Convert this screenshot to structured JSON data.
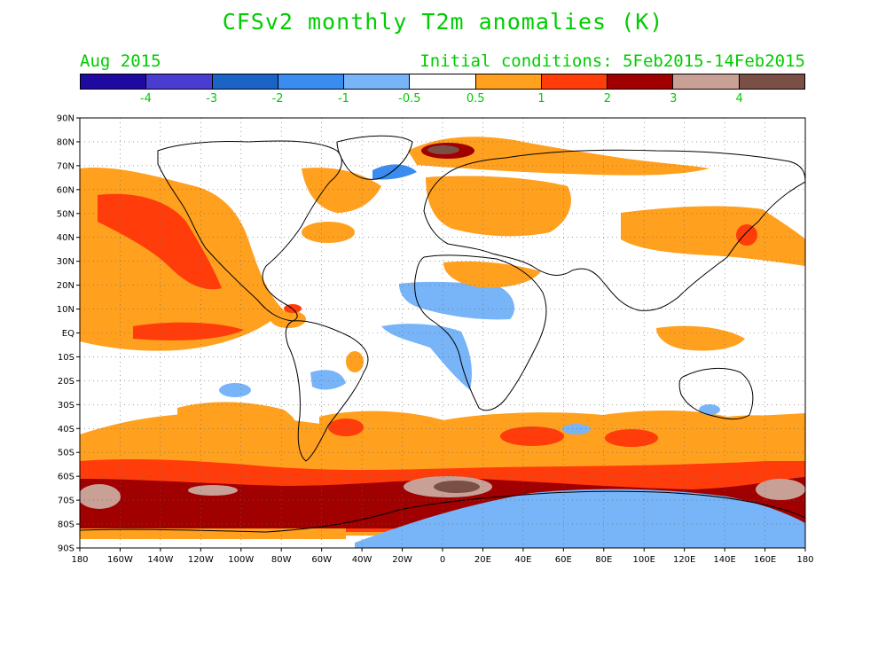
{
  "title": "CFSv2 monthly T2m anomalies (K)",
  "valid_month": "Aug 2015",
  "initial_conditions": "Initial conditions: 5Feb2015-14Feb2015",
  "colorbar": {
    "colors": [
      "#1e0aa0",
      "#4a3cd0",
      "#1a64c8",
      "#3a8cf0",
      "#78b4f8",
      "#ffffff",
      "#ffa01e",
      "#ff3c0a",
      "#a00000",
      "#c8a096",
      "#7a5046"
    ],
    "labels": [
      "-4",
      "-3",
      "-2",
      "-1",
      "-0.5",
      "0.5",
      "1",
      "2",
      "3",
      "4"
    ]
  },
  "axes": {
    "lat_labels": [
      "90N",
      "80N",
      "70N",
      "60N",
      "50N",
      "40N",
      "30N",
      "20N",
      "10N",
      "EQ",
      "10S",
      "20S",
      "30S",
      "40S",
      "50S",
      "60S",
      "70S",
      "80S",
      "90S"
    ],
    "lon_labels": [
      "180",
      "160W",
      "140W",
      "120W",
      "100W",
      "80W",
      "60W",
      "40W",
      "20W",
      "0",
      "20E",
      "40E",
      "60E",
      "80E",
      "100E",
      "120E",
      "140E",
      "160E",
      "180"
    ]
  }
}
